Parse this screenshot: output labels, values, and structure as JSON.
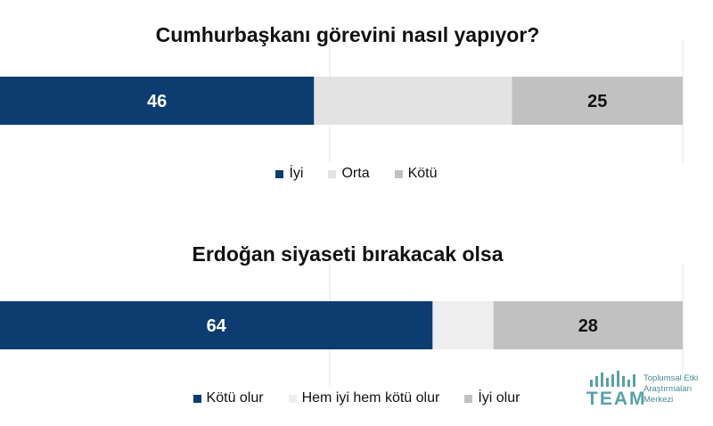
{
  "chart_data": [
    {
      "type": "bar",
      "orientation": "horizontal-stacked",
      "title": "Cumhurbaşkanı görevini nasıl yapıyor?",
      "series": [
        {
          "name": "İyi",
          "value": 46,
          "label": "46",
          "color": "#0d3c70"
        },
        {
          "name": "Orta",
          "value": 29,
          "label": "",
          "color": "#e3e3e3"
        },
        {
          "name": "Kötü",
          "value": 25,
          "label": "25",
          "color": "#c1c1c1"
        }
      ],
      "xlim": [
        0,
        100
      ],
      "grid": true,
      "legend_position": "bottom"
    },
    {
      "type": "bar",
      "orientation": "horizontal-stacked",
      "title": "Erdoğan siyaseti bırakacak olsa",
      "series": [
        {
          "name": "Kötü olur",
          "value": 64,
          "label": "64",
          "color": "#0d3c70"
        },
        {
          "name": "Hem iyi hem kötü olur",
          "value": 9,
          "label": "",
          "color": "#eeeeee"
        },
        {
          "name": "İyi olur",
          "value": 28,
          "label": "28",
          "color": "#c1c1c1"
        }
      ],
      "xlim": [
        0,
        101
      ],
      "grid": true,
      "legend_position": "bottom"
    }
  ],
  "logo": {
    "word": "TEAM",
    "lines": [
      "Toplumsal Etki",
      "Araştırmaları",
      "Merkezi"
    ],
    "color": "#5aa0a8"
  }
}
